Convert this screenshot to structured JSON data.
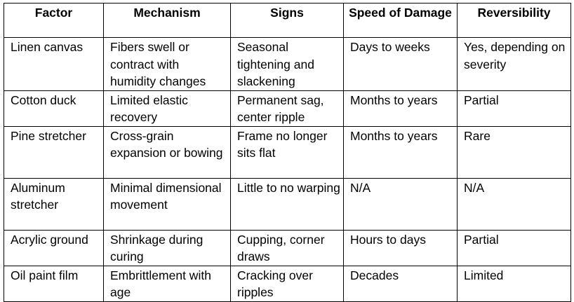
{
  "table": {
    "headers": [
      "Factor",
      "Mechanism",
      "Signs",
      "Speed of Damage",
      "Reversibility"
    ],
    "rows": [
      [
        "Linen canvas",
        "Fibers swell or contract with humidity changes",
        "Seasonal tightening and slackening",
        "Days to weeks",
        "Yes, depending on severity"
      ],
      [
        "Cotton duck",
        "Limited elastic recovery",
        "Permanent sag, center ripple",
        "Months to years",
        "Partial"
      ],
      [
        "Pine stretcher",
        "Cross-grain expansion or bowing",
        "Frame no longer sits flat",
        "Months to years",
        "Rare"
      ],
      [
        "Aluminum stretcher",
        "Minimal dimensional movement",
        "Little to no warping",
        "N/A",
        "N/A"
      ],
      [
        "Acrylic ground",
        "Shrinkage during curing",
        "Cupping, corner draws",
        "Hours to days",
        "Partial"
      ],
      [
        "Oil paint film",
        "Embrittlement with age",
        "Cracking over ripples",
        "Decades",
        "Limited"
      ]
    ]
  }
}
